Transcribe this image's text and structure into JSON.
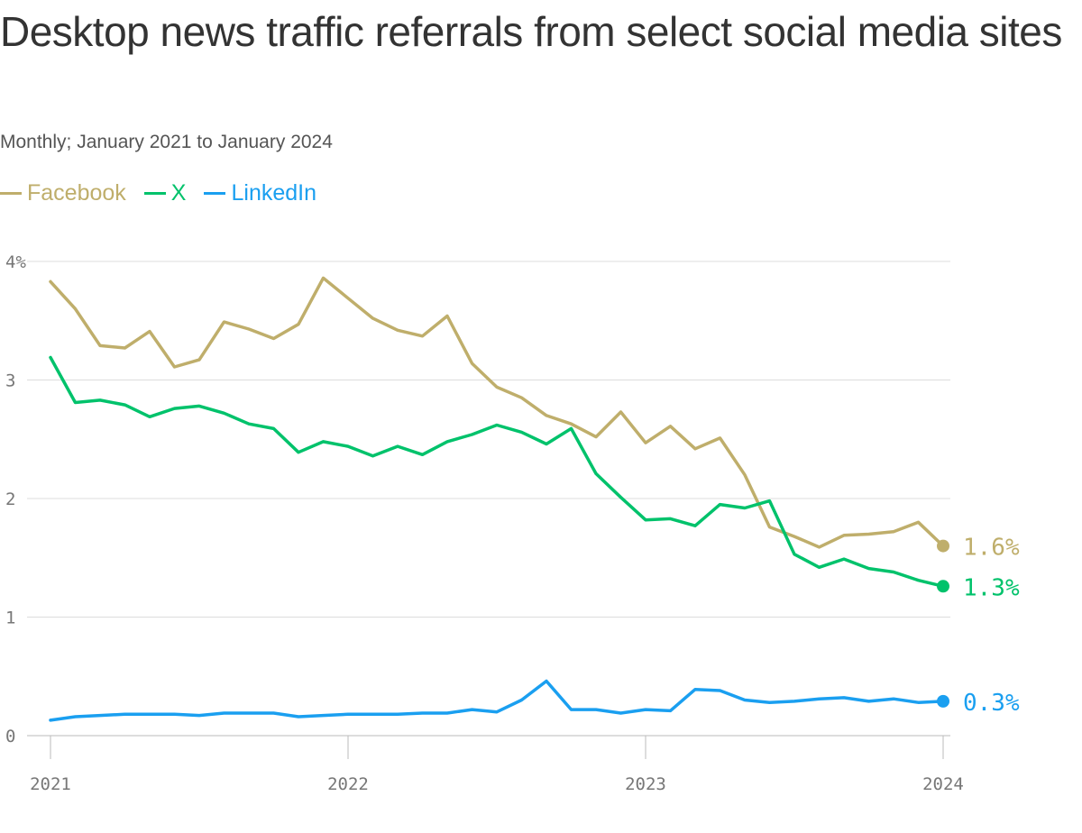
{
  "chart_data": {
    "type": "line",
    "title": "Desktop news traffic referrals from select social media sites",
    "subtitle": "Monthly; January 2021 to January 2024",
    "x_start": "2021-01",
    "x_ticks": [
      "2021",
      "2022",
      "2023",
      "2024"
    ],
    "y_ticks": [
      {
        "v": 0,
        "label": "0"
      },
      {
        "v": 1,
        "label": "1"
      },
      {
        "v": 2,
        "label": "2"
      },
      {
        "v": 3,
        "label": "3"
      },
      {
        "v": 4,
        "label": "4%"
      }
    ],
    "ylim": [
      0,
      4
    ],
    "grid": true,
    "legend_position": "top-left",
    "series": [
      {
        "name": "Facebook",
        "color": "#bfae6b",
        "end_label": "1.6%",
        "values": [
          3.83,
          3.6,
          3.29,
          3.27,
          3.41,
          3.11,
          3.17,
          3.49,
          3.43,
          3.35,
          3.47,
          3.86,
          3.69,
          3.52,
          3.42,
          3.37,
          3.54,
          3.14,
          2.94,
          2.85,
          2.7,
          2.63,
          2.52,
          2.73,
          2.47,
          2.61,
          2.42,
          2.51,
          2.2,
          1.76,
          1.68,
          1.59,
          1.69,
          1.7,
          1.72,
          1.8,
          1.6
        ]
      },
      {
        "name": "X",
        "color": "#00c26b",
        "end_label": "1.3%",
        "values": [
          3.19,
          2.81,
          2.83,
          2.79,
          2.69,
          2.76,
          2.78,
          2.72,
          2.63,
          2.59,
          2.39,
          2.48,
          2.44,
          2.36,
          2.44,
          2.37,
          2.48,
          2.54,
          2.62,
          2.56,
          2.46,
          2.59,
          2.21,
          2.01,
          1.82,
          1.83,
          1.77,
          1.95,
          1.92,
          1.98,
          1.53,
          1.42,
          1.49,
          1.41,
          1.38,
          1.31,
          1.26
        ]
      },
      {
        "name": "LinkedIn",
        "color": "#1a9ff0",
        "end_label": "0.3%",
        "values": [
          0.13,
          0.16,
          0.17,
          0.18,
          0.18,
          0.18,
          0.17,
          0.19,
          0.19,
          0.19,
          0.16,
          0.17,
          0.18,
          0.18,
          0.18,
          0.19,
          0.19,
          0.22,
          0.2,
          0.3,
          0.46,
          0.22,
          0.22,
          0.19,
          0.22,
          0.21,
          0.39,
          0.38,
          0.3,
          0.28,
          0.29,
          0.31,
          0.32,
          0.29,
          0.31,
          0.28,
          0.29
        ]
      }
    ]
  }
}
